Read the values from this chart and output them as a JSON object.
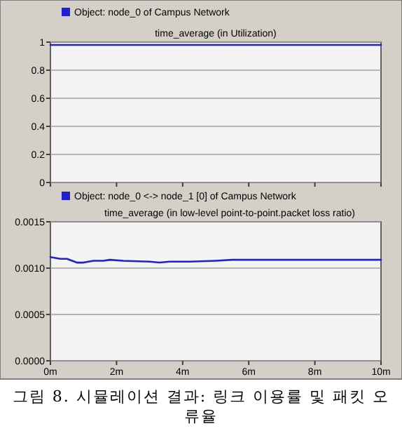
{
  "chart_data": [
    {
      "type": "line",
      "title": "time_average (in Utilization)",
      "legend": "top",
      "grid": "y",
      "marker": "none",
      "line_style": "solid",
      "tick_labels": "y",
      "series": [
        {
          "name": "Object: node_0 of Campus Network",
          "color": "#2020d0",
          "x": [
            0,
            10
          ],
          "values": [
            0.98,
            0.98
          ]
        }
      ],
      "xlim": [
        0,
        10
      ],
      "xticks": [
        {
          "value": 0,
          "label": null
        },
        {
          "value": 2,
          "label": null
        },
        {
          "value": 4,
          "label": null
        },
        {
          "value": 6,
          "label": null
        },
        {
          "value": 8,
          "label": null
        },
        {
          "value": 10,
          "label": null
        }
      ],
      "ylim": [
        0,
        1
      ],
      "yticks": [
        0,
        0.2,
        0.4,
        0.6,
        0.8,
        1
      ]
    },
    {
      "type": "line",
      "title": "time_average (in low-level point-to-point.packet loss ratio)",
      "legend": "top",
      "grid": "y",
      "marker": "none",
      "line_style": "solid",
      "series": [
        {
          "name": "Object: node_0 <-> node_1 [0] of Campus Network",
          "color": "#2020d0",
          "x": [
            0,
            0.3,
            0.5,
            0.8,
            1.0,
            1.3,
            1.6,
            1.8,
            2.2,
            3.0,
            3.3,
            3.6,
            4.2,
            5.0,
            5.5,
            7.0,
            8.0,
            10.0
          ],
          "values": [
            0.00112,
            0.0011,
            0.0011,
            0.00106,
            0.00106,
            0.00108,
            0.00108,
            0.00109,
            0.00108,
            0.00107,
            0.00106,
            0.00107,
            0.00107,
            0.00108,
            0.00109,
            0.00109,
            0.00109,
            0.00109
          ]
        }
      ],
      "xlim": [
        0,
        10
      ],
      "xticks": [
        {
          "value": 0,
          "label": "0m"
        },
        {
          "value": 2,
          "label": "2m"
        },
        {
          "value": 4,
          "label": "4m"
        },
        {
          "value": 6,
          "label": "6m"
        },
        {
          "value": 8,
          "label": "8m"
        },
        {
          "value": 10,
          "label": "10m"
        }
      ],
      "ylim": [
        0,
        0.0015
      ],
      "yticks": [
        {
          "value": 0,
          "label": "0.0000"
        },
        {
          "value": 0.0005,
          "label": "0.0005"
        },
        {
          "value": 0.001,
          "label": "0.0010"
        },
        {
          "value": 0.0015,
          "label": "0.0015"
        }
      ],
      "annotations": [
        "그림 8. 시뮬레이션 결과: 링크 이용률 및 패킷 오류율"
      ]
    }
  ]
}
